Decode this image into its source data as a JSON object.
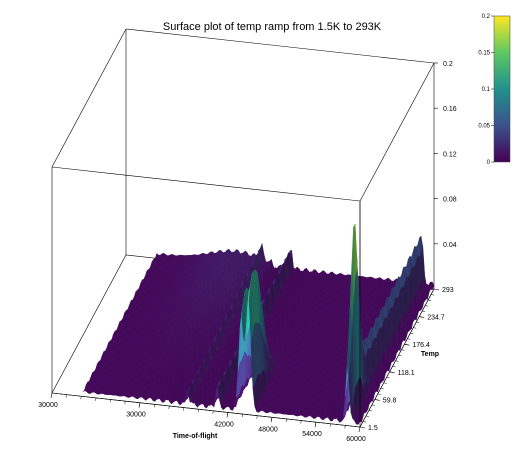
{
  "chart_data": {
    "type": "surface",
    "title": "Surface plot of temp ramp from 1.5K to 293K",
    "x_axis": {
      "label": "Time-of-flight",
      "range": [
        18000,
        60000
      ],
      "tick_labels": [
        "30000",
        "30000",
        "42000",
        "48000",
        "54000",
        "60000"
      ]
    },
    "y_axis": {
      "label": "Temp",
      "range": [
        1.5,
        293
      ],
      "tick_labels": [
        "1.5",
        "59.8",
        "118.1",
        "176.4",
        "234.7",
        "293"
      ]
    },
    "z_axis": {
      "label": "",
      "range": [
        0,
        0.2
      ],
      "tick_labels": [
        "0.04",
        "0.08",
        "0.12",
        "0.16",
        "0.2"
      ]
    },
    "colorbar": {
      "range": [
        0,
        0.2
      ],
      "tick_labels": [
        "0.2",
        "0.15",
        "0.1",
        "0.05",
        "0"
      ],
      "colormap": [
        "#440154",
        "#3b528b",
        "#21918c",
        "#5ec962",
        "#fde725"
      ]
    },
    "peaks": [
      {
        "tof": 36500,
        "temp_range": [
          1.5,
          293
        ],
        "max_intensity": 0.012
      },
      {
        "tof": 40500,
        "temp_range": [
          1.5,
          293
        ],
        "max_intensity": 0.02
      },
      {
        "tof": 43800,
        "temp_range": [
          1.5,
          293
        ],
        "max_intensity": 0.1
      },
      {
        "tof": 44800,
        "temp_range": [
          1.5,
          293
        ],
        "max_intensity": 0.12
      },
      {
        "tof": 58300,
        "temp_range": [
          1.5,
          293
        ],
        "max_intensity": 0.17
      }
    ]
  }
}
